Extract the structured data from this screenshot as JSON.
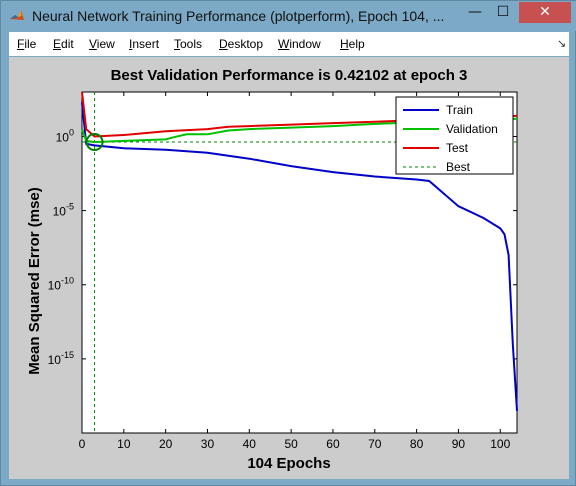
{
  "window": {
    "title": "Neural Network Training Performance (plotperform), Epoch 104, ...",
    "min_glyph": "—",
    "max_glyph": "☐",
    "close_glyph": "✕",
    "icon": "matlab-logo-icon"
  },
  "menu": {
    "items": [
      {
        "first": "F",
        "rest": "ile"
      },
      {
        "first": "E",
        "rest": "dit"
      },
      {
        "first": "V",
        "rest": "iew"
      },
      {
        "first": "I",
        "rest": "nsert"
      },
      {
        "first": "T",
        "rest": "ools"
      },
      {
        "first": "D",
        "rest": "esktop"
      },
      {
        "first": "W",
        "rest": "indow"
      },
      {
        "first": "H",
        "rest": "elp"
      }
    ],
    "dock_glyph": "↘"
  },
  "chart_data": {
    "type": "line",
    "title": "Best Validation Performance is 0.42102 at epoch 3",
    "xlabel": "104 Epochs",
    "ylabel": "Mean Squared Error  (mse)",
    "xlim": [
      0,
      104
    ],
    "ylim_exp": [
      -20,
      3
    ],
    "yscale": "log",
    "x_ticks": [
      0,
      10,
      20,
      30,
      40,
      50,
      60,
      70,
      80,
      90,
      100
    ],
    "y_ticks": [
      {
        "exp": 0,
        "base": "10",
        "sup": "0"
      },
      {
        "exp": -5,
        "base": "10",
        "sup": "-5"
      },
      {
        "exp": -10,
        "base": "10",
        "sup": "-10"
      },
      {
        "exp": -15,
        "base": "10",
        "sup": "-15"
      }
    ],
    "legend_position": "top-right",
    "grid": false,
    "series": [
      {
        "name": "Train",
        "color": "#0000c8",
        "style": "solid",
        "points": [
          [
            0,
            2.3
          ],
          [
            1,
            -0.5
          ],
          [
            3,
            -0.6
          ],
          [
            10,
            -0.8
          ],
          [
            20,
            -0.9
          ],
          [
            30,
            -1.1
          ],
          [
            40,
            -1.5
          ],
          [
            50,
            -2.0
          ],
          [
            60,
            -2.4
          ],
          [
            70,
            -2.7
          ],
          [
            80,
            -2.9
          ],
          [
            83,
            -3.0
          ],
          [
            90,
            -4.7
          ],
          [
            96,
            -5.5
          ],
          [
            100,
            -6.2
          ],
          [
            101,
            -6.6
          ],
          [
            102,
            -8.0
          ],
          [
            103,
            -14.0
          ],
          [
            104,
            -18.5
          ]
        ]
      },
      {
        "name": "Validation",
        "color": "#00c000",
        "style": "solid",
        "points": [
          [
            0,
            0.5
          ],
          [
            1,
            -0.3
          ],
          [
            3,
            -0.38
          ],
          [
            10,
            -0.3
          ],
          [
            20,
            -0.2
          ],
          [
            22,
            -0.05
          ],
          [
            25,
            0.15
          ],
          [
            30,
            0.15
          ],
          [
            35,
            0.4
          ],
          [
            40,
            0.5
          ],
          [
            50,
            0.6
          ],
          [
            60,
            0.7
          ],
          [
            70,
            0.85
          ],
          [
            80,
            0.95
          ],
          [
            90,
            1.1
          ],
          [
            100,
            1.15
          ],
          [
            104,
            1.2
          ]
        ]
      },
      {
        "name": "Test",
        "color": "#e00000",
        "style": "solid",
        "points": [
          [
            0,
            3.0
          ],
          [
            1,
            0.5
          ],
          [
            3,
            0.0
          ],
          [
            10,
            0.1
          ],
          [
            20,
            0.35
          ],
          [
            30,
            0.5
          ],
          [
            35,
            0.65
          ],
          [
            40,
            0.7
          ],
          [
            50,
            0.8
          ],
          [
            60,
            0.9
          ],
          [
            70,
            1.0
          ],
          [
            80,
            1.1
          ],
          [
            90,
            1.25
          ],
          [
            100,
            1.3
          ],
          [
            104,
            1.4
          ]
        ]
      },
      {
        "name": "Best",
        "color": "#008000",
        "style": "dashed"
      }
    ],
    "best": {
      "epoch": 3,
      "value": 0.42102,
      "exp": -0.376
    }
  }
}
